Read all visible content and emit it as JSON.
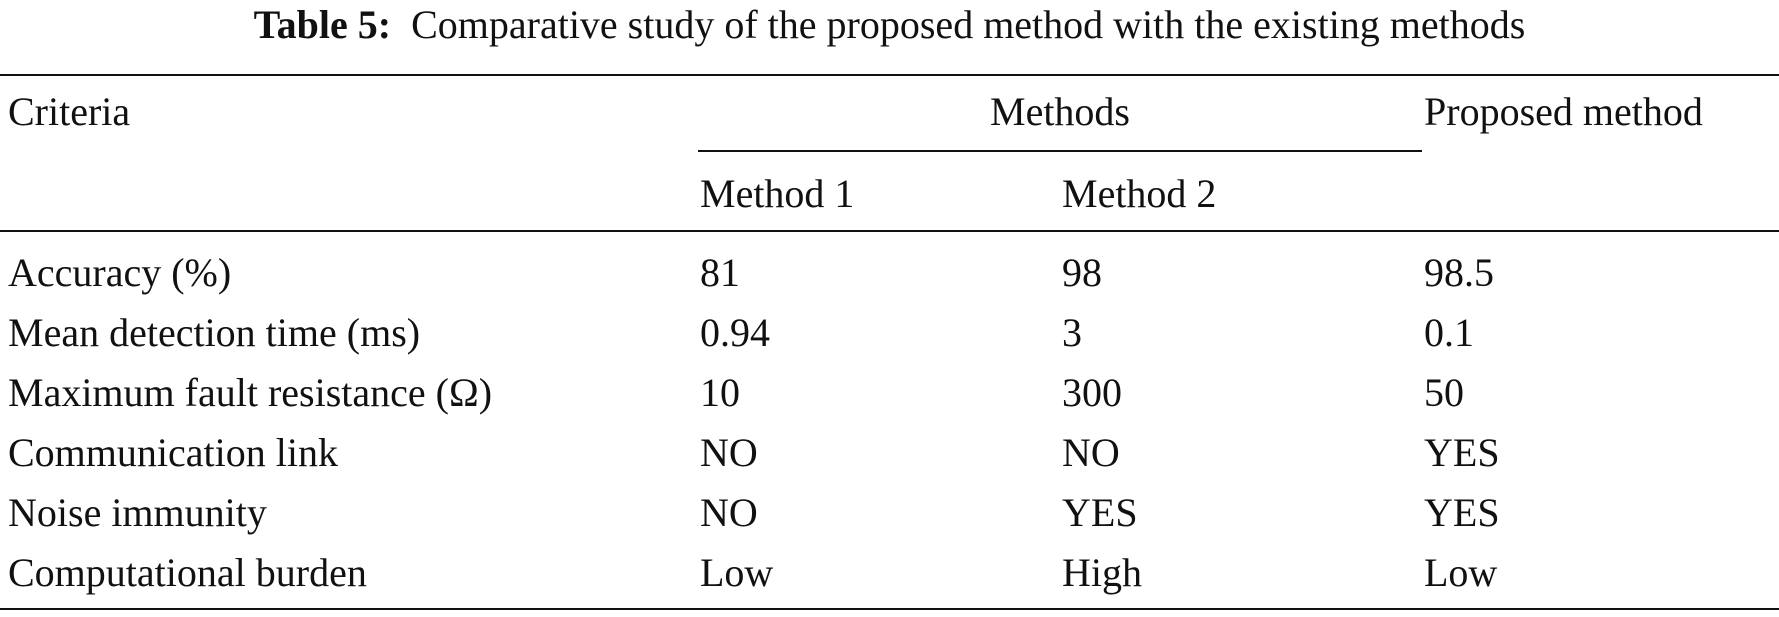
{
  "caption": {
    "label": "Table 5:",
    "text": "Comparative study of the proposed method with the existing methods"
  },
  "table": {
    "header": {
      "criteria": "Criteria",
      "methods_group": "Methods",
      "method1": "Method 1",
      "method2": "Method 2",
      "proposed": "Proposed method"
    },
    "rows": [
      {
        "criteria": "Accuracy (%)",
        "method1": "81",
        "method2": "98",
        "proposed": "98.5"
      },
      {
        "criteria": "Mean detection time (ms)",
        "method1": "0.94",
        "method2": "3",
        "proposed": "0.1"
      },
      {
        "criteria": "Maximum fault resistance (Ω)",
        "method1": "10",
        "method2": "300",
        "proposed": "50"
      },
      {
        "criteria": "Communication link",
        "method1": "NO",
        "method2": "NO",
        "proposed": "YES"
      },
      {
        "criteria": "Noise immunity",
        "method1": "NO",
        "method2": "YES",
        "proposed": "YES"
      },
      {
        "criteria": "Computational burden",
        "method1": "Low",
        "method2": "High",
        "proposed": "Low"
      }
    ]
  }
}
